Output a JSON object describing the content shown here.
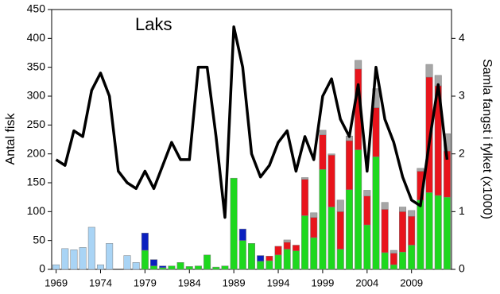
{
  "chart_data": {
    "type": "bar",
    "stacked": true,
    "annotation": "Laks",
    "y_label": "Antal fisk",
    "y2_label": "Samla fangst i fylket (x1000)",
    "categories": [
      "1969",
      null,
      null,
      null,
      null,
      "1974",
      null,
      null,
      null,
      null,
      "1979",
      null,
      null,
      null,
      null,
      "1984",
      null,
      null,
      null,
      null,
      "1989",
      null,
      null,
      null,
      null,
      "1994",
      null,
      null,
      null,
      null,
      "1999",
      null,
      null,
      null,
      null,
      "2004",
      null,
      null,
      null,
      null,
      "2009",
      null,
      null,
      null,
      null
    ],
    "series": [
      {
        "color": "#a9d4f5",
        "values": [
          8,
          36,
          34,
          38,
          73,
          8,
          45,
          0,
          24,
          12,
          0,
          0,
          0,
          0,
          0,
          0,
          0,
          0,
          0,
          0,
          0,
          0,
          0,
          0,
          0,
          0,
          0,
          0,
          0,
          0,
          0,
          0,
          0,
          0,
          0,
          0,
          0,
          0,
          0,
          0,
          0,
          0,
          0,
          0,
          0
        ]
      },
      {
        "color": "#1ed81e",
        "values": [
          0,
          0,
          0,
          0,
          0,
          0,
          0,
          0,
          0,
          0,
          33,
          6,
          3,
          6,
          12,
          5,
          6,
          25,
          4,
          6,
          158,
          50,
          45,
          14,
          15,
          25,
          35,
          32,
          93,
          55,
          173,
          108,
          35,
          138,
          207,
          77,
          195,
          29,
          8,
          30,
          42,
          120,
          133,
          128,
          125
        ]
      },
      {
        "color": "#0a1fbf",
        "values": [
          0,
          0,
          0,
          0,
          0,
          0,
          0,
          0,
          0,
          0,
          30,
          11,
          3,
          0,
          0,
          0,
          0,
          0,
          0,
          0,
          0,
          20,
          0,
          10,
          0,
          0,
          0,
          0,
          0,
          0,
          0,
          0,
          0,
          0,
          0,
          0,
          0,
          0,
          0,
          0,
          0,
          0,
          0,
          0,
          0
        ]
      },
      {
        "color": "#e8141c",
        "values": [
          0,
          0,
          0,
          0,
          0,
          0,
          0,
          0,
          0,
          0,
          0,
          0,
          0,
          0,
          0,
          0,
          0,
          0,
          0,
          0,
          0,
          0,
          0,
          0,
          8,
          15,
          12,
          10,
          63,
          35,
          60,
          90,
          65,
          85,
          140,
          50,
          85,
          75,
          20,
          70,
          50,
          50,
          200,
          190,
          80
        ]
      },
      {
        "color": "#a6a6a6",
        "values": [
          0,
          0,
          0,
          0,
          0,
          0,
          0,
          0,
          0,
          0,
          0,
          0,
          0,
          0,
          0,
          0,
          0,
          0,
          0,
          0,
          0,
          0,
          0,
          0,
          0,
          0,
          4,
          0,
          3,
          8,
          8,
          2,
          20,
          8,
          15,
          10,
          33,
          12,
          5,
          8,
          10,
          5,
          22,
          18,
          30
        ]
      },
      {
        "color": "#000000",
        "type": "line",
        "axis": "y2",
        "values": [
          1.9,
          1.8,
          2.4,
          2.3,
          3.1,
          3.4,
          3.0,
          1.7,
          1.5,
          1.4,
          1.7,
          1.4,
          1.8,
          2.2,
          1.9,
          1.9,
          3.5,
          3.5,
          2.3,
          0.9,
          4.2,
          3.5,
          2.0,
          1.6,
          1.8,
          2.2,
          2.4,
          1.7,
          2.3,
          1.9,
          3.0,
          3.3,
          2.6,
          2.3,
          3.2,
          1.7,
          3.5,
          2.6,
          2.2,
          1.6,
          1.2,
          1.1,
          2.2,
          3.2,
          1.9
        ]
      }
    ],
    "ylim": [
      0,
      450
    ],
    "yticks": [
      0,
      50,
      100,
      150,
      200,
      250,
      300,
      350,
      400,
      450
    ],
    "y2lim": [
      0,
      4.5
    ],
    "y2ticks": [
      0,
      1,
      2,
      3,
      4
    ]
  }
}
